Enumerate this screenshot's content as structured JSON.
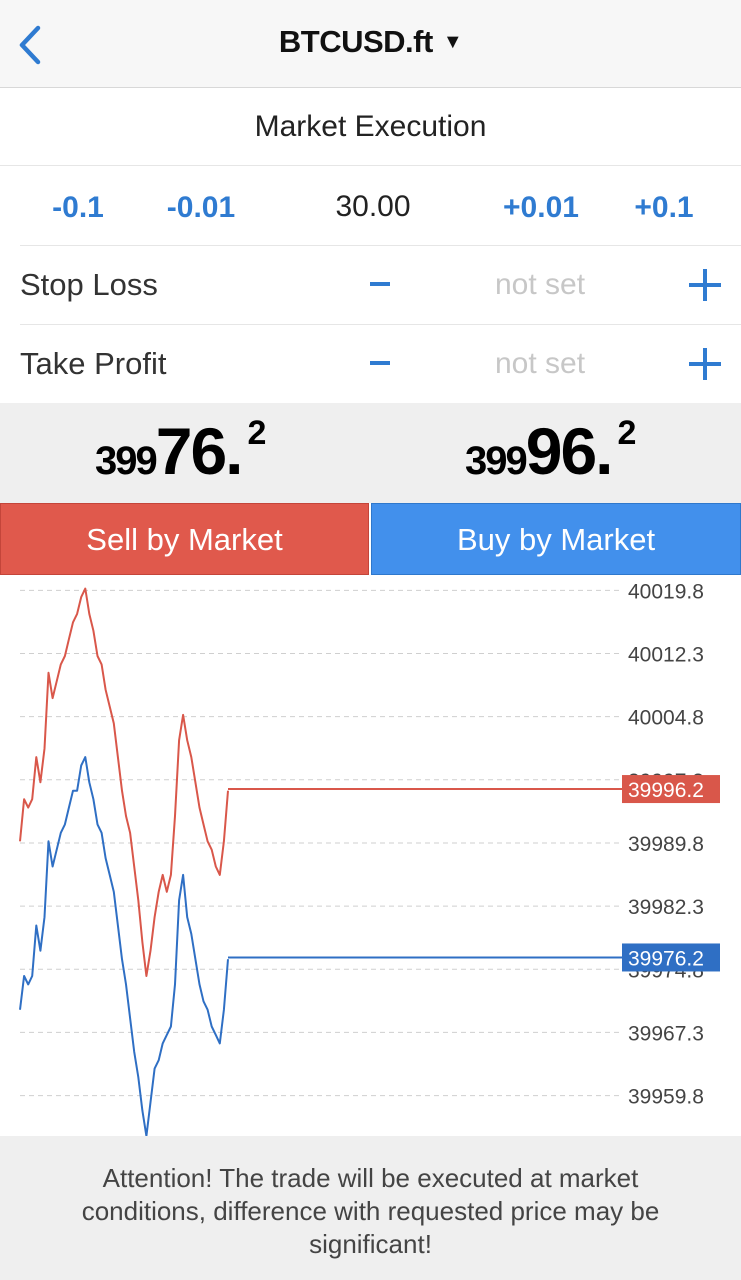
{
  "header": {
    "back_icon": "chevron-left-icon",
    "title": "BTCUSD.ft",
    "title_caret": "▼"
  },
  "execution_type": "Market Execution",
  "volume": {
    "dec_large": "-0.1",
    "dec_small": "-0.01",
    "value": "30.00",
    "inc_small": "+0.01",
    "inc_large": "+0.1"
  },
  "stop_loss": {
    "label": "Stop Loss",
    "minus": "-",
    "value": "not set",
    "plus": "+"
  },
  "take_profit": {
    "label": "Take Profit",
    "minus": "-",
    "value": "not set",
    "plus": "+"
  },
  "bid": {
    "prefix": "399",
    "main": "76.",
    "sup": "2"
  },
  "ask": {
    "prefix": "399",
    "main": "96.",
    "sup": "2"
  },
  "buttons": {
    "sell": "Sell by Market",
    "buy": "Buy by Market"
  },
  "colors": {
    "accent": "#2f7bd1",
    "sell": "#e0594c",
    "buy": "#4290ec",
    "ask_line": "#d9574a",
    "bid_line": "#2f6fc4"
  },
  "chart_data": {
    "type": "line",
    "ylim": [
      39955.0,
      40021.5
    ],
    "y_ticks": [
      "40019.8",
      "40012.3",
      "40004.8",
      "39997.3",
      "39989.8",
      "39982.3",
      "39974.8",
      "39967.3",
      "39959.8"
    ],
    "grid": true,
    "series": [
      {
        "role": "ask",
        "color": "#d9574a",
        "current_label": "39996.2",
        "values": [
          39990,
          39995,
          39994,
          39995,
          40000,
          39997,
          40001,
          40010,
          40007,
          40009,
          40011,
          40012,
          40014,
          40016,
          40017,
          40019,
          40020,
          40017,
          40015,
          40012,
          40011,
          40008,
          40006,
          40004,
          40000,
          39996,
          39993,
          39991,
          39987,
          39983,
          39978,
          39974,
          39977,
          39981,
          39984,
          39986,
          39984,
          39986,
          39993,
          40002,
          40005,
          40002,
          40000,
          39997,
          39994,
          39992,
          39990,
          39989,
          39987,
          39986,
          39990,
          39996
        ]
      },
      {
        "role": "bid",
        "color": "#2f6fc4",
        "current_label": "39976.2",
        "values": [
          39970,
          39974,
          39973,
          39974,
          39980,
          39977,
          39981,
          39990,
          39987,
          39989,
          39991,
          39992,
          39994,
          39996,
          39996,
          39999,
          40000,
          39997,
          39995,
          39992,
          39991,
          39988,
          39986,
          39984,
          39980,
          39976,
          39973,
          39969,
          39965,
          39962,
          39958,
          39955,
          39959,
          39963,
          39964,
          39966,
          39967,
          39968,
          39973,
          39983,
          39986,
          39981,
          39979,
          39976,
          39973,
          39971,
          39970,
          39968,
          39967,
          39966,
          39970,
          39976
        ]
      }
    ]
  },
  "notice": "Attention! The trade will be executed at market conditions, difference with requested price may be significant!"
}
